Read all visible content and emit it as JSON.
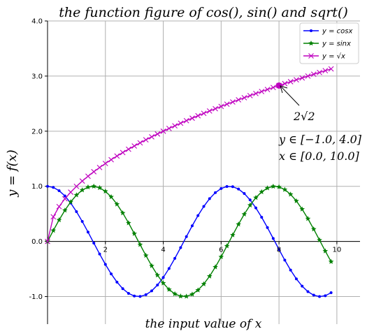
{
  "chart_data": {
    "type": "line",
    "title": "the function figure of cos(), sin() and sqrt()",
    "xlabel": "the input value of x",
    "ylabel": "y = f(x)",
    "xlim": [
      0,
      10.8
    ],
    "ylim": [
      -1.5,
      4.0
    ],
    "xticks": [
      2,
      4,
      6,
      8,
      10
    ],
    "xtick_labels": [
      "2",
      "4",
      "6",
      "8",
      "10"
    ],
    "yticks": [
      -1.0,
      0.0,
      1.0,
      2.0,
      3.0,
      4.0
    ],
    "ytick_labels": [
      "-1.0",
      "0.0",
      "1.0",
      "2.0",
      "3.0",
      "4.0"
    ],
    "origin_label": "0.0",
    "grid": true,
    "legend_position": "upper-right",
    "x_sample": {
      "start": 0,
      "stop": 9.8,
      "step": 0.2
    },
    "series": [
      {
        "name": "y = cosx",
        "function": "cos",
        "color": "#0000ff",
        "marker": "dot"
      },
      {
        "name": "y = sinx",
        "function": "sin",
        "color": "#008000",
        "marker": "star"
      },
      {
        "name": "y = √x",
        "function": "sqrt",
        "color": "#bf00bf",
        "marker": "x"
      }
    ],
    "annotations": [
      {
        "text": "2√2",
        "point": [
          8,
          2.8284271
        ]
      },
      {
        "text": "y ∈ [−1.0, 4.0]"
      },
      {
        "text": "x ∈ [0.0, 10.0]"
      }
    ]
  }
}
